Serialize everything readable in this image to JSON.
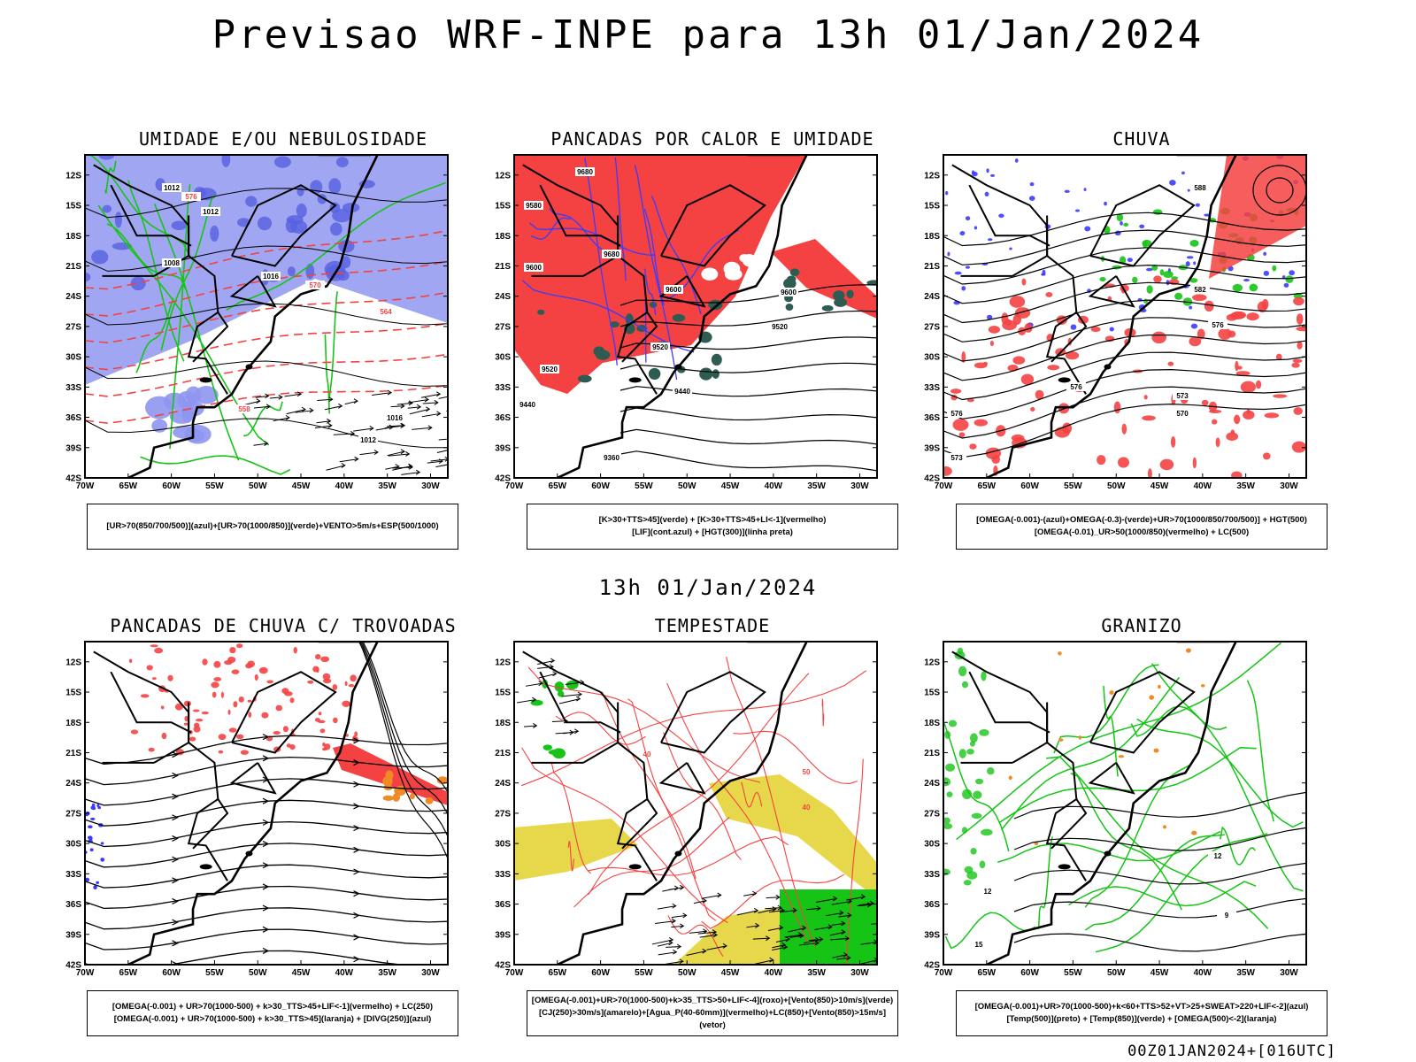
{
  "title": "Previsao WRF-INPE  para 13h 01/Jan/2024",
  "mid_time": "13h 01/Jan/2024",
  "footer": "00Z01JAN2024+[016UTC]",
  "lat_labels": [
    "12S",
    "15S",
    "18S",
    "21S",
    "24S",
    "27S",
    "30S",
    "33S",
    "36S",
    "39S",
    "42S"
  ],
  "lon_labels": [
    "70W",
    "65W",
    "60W",
    "55W",
    "50W",
    "45W",
    "40W",
    "35W",
    "30W"
  ],
  "colors": {
    "blue": "#8f96f0",
    "green": "#16c416",
    "red": "#f44242",
    "darkgreen": "#2f5c52",
    "orange": "#f08a24",
    "yellow": "#e6d84a",
    "contour": "#000000",
    "purple": "#3b3bff"
  },
  "panels": [
    {
      "title": "UMIDADE E/OU NEBULOSIDADE",
      "legend": [
        "[UR>70(850/700/500)](azul)+[UR>70(1000/850)](verde)+VENTO>5m/s+ESP(500/1000)"
      ],
      "contour_labels": [
        "1012",
        "1016",
        "1008",
        "1012",
        "576",
        "570",
        "564",
        "558",
        "1016",
        "1012"
      ]
    },
    {
      "title": "PANCADAS POR CALOR E UMIDADE",
      "legend": [
        "[K>30+TTS>45](verde)  +  [K>30+TTS>45+LI<-1](vermelho)",
        "[LIF](cont.azul)  +  [HGT(300)](linha preta)"
      ],
      "contour_labels": [
        "9680",
        "9580",
        "9600",
        "9680",
        "9600",
        "9600",
        "9520",
        "9520",
        "9520",
        "9440",
        "9440",
        "9360"
      ]
    },
    {
      "title": "CHUVA",
      "legend": [
        "[OMEGA(-0.001)-(azul)+OMEGA(-0.3)-(verde)+UR>70(1000/850/700/500)]  +  HGT(500)",
        "[OMEGA(-0.01)_UR>50(1000/850)(vermelho)  +  LC(500)"
      ],
      "contour_labels": [
        "588",
        "582",
        "576",
        "576",
        "573",
        "570",
        "576",
        "573"
      ]
    },
    {
      "title": "PANCADAS DE CHUVA C/ TROVOADAS",
      "legend": [
        "[OMEGA(-0.001)  +  UR>70(1000-500)  +  k>30_TTS>45+LIF<-1](vermelho)  +  LC(250)",
        "[OMEGA(-0.001)  +  UR>70(1000-500)  +  k>30_TTS>45](laranja)  +  [DIVG(250)](azul)"
      ]
    },
    {
      "title": "TEMPESTADE",
      "legend": [
        "[OMEGA(-0.001)+UR>70(1000-500)+k>35_TTS>50+LIF<-4](roxo)+[Vento(850)>10m/s](verde)",
        "[CJ(250)>30m/s](amarelo)+[Agua_P(40-60mm)](vermelho)+LC(850)+[Vento(850)>15m/s](vetor)"
      ],
      "contour_labels": [
        "40",
        "50",
        "40"
      ]
    },
    {
      "title": "GRANIZO",
      "legend": [
        "[OMEGA(-0.001)+UR>70(1000-500)+k<60+TTS>52+VT>25+SWEAT>220+LIF<-2](azul)",
        "[Temp(500)](preto)  +  [Temp(850)](verde)  +  [OMEGA(500)<-2](laranja)"
      ],
      "contour_labels": [
        "12",
        "12",
        "9",
        "15"
      ]
    }
  ]
}
